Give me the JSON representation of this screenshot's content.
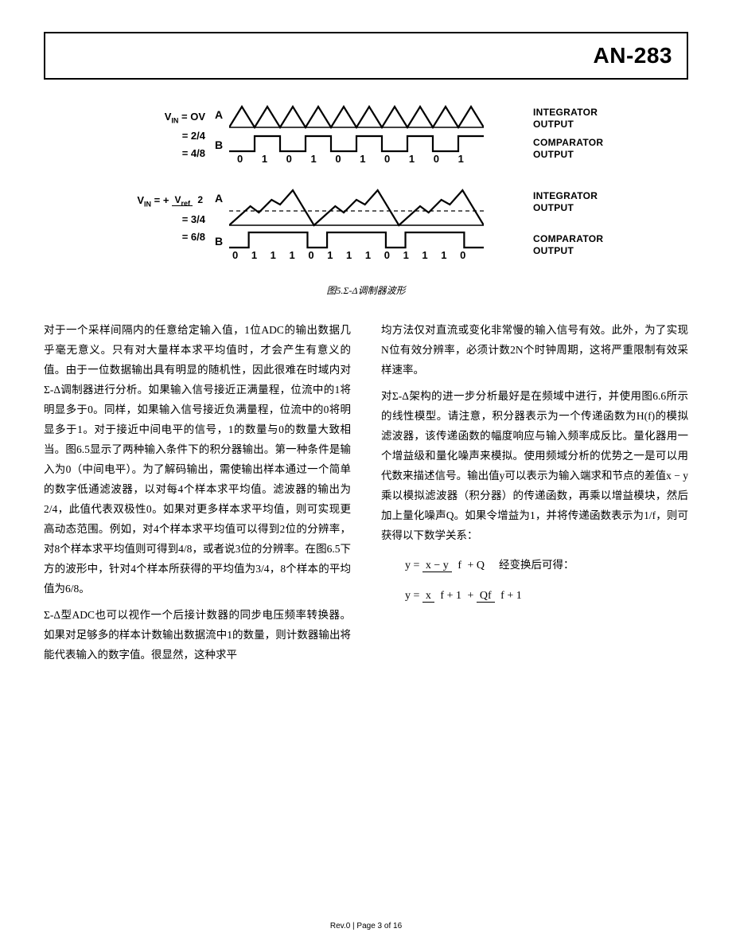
{
  "header": {
    "title": "AN-283"
  },
  "diagram": {
    "row1": {
      "vin_line1_prefix": "V",
      "vin_line1_sub": "IN",
      "vin_line1_rest": " = OV",
      "vin_line2": "= 2/4",
      "vin_line3": "= 4/8",
      "labelA": "A",
      "labelB": "B",
      "outA": "INTEGRATOR OUTPUT",
      "outB": "COMPARATOR OUTPUT",
      "bits": "0  1  0  1  0  1  0  1  0  1",
      "tri_count": 10,
      "sq_values": [
        0,
        1,
        0,
        1,
        0,
        1,
        0,
        1,
        0,
        1
      ]
    },
    "row2": {
      "vin_line1_prefix": "V",
      "vin_line1_sub": "IN",
      "vin_line1_rest1": " = + ",
      "vin_line1_frac_n": "V",
      "vin_line1_frac_nsub": "ref",
      "vin_line1_frac_d": "2",
      "vin_line2": "= 3/4",
      "vin_line3": "= 6/8",
      "labelA": "A",
      "labelB": "B",
      "outA": "INTEGRATOR OUTPUT",
      "outB": "COMPARATOR OUTPUT",
      "bits": "0  1  1  1  0  1  1  1  0  1  1  1  0",
      "sq_values": [
        0,
        1,
        1,
        1,
        0,
        1,
        1,
        1,
        0,
        1,
        1,
        1,
        0
      ]
    },
    "caption": "图5.Σ-Δ调制器波形",
    "stroke_color": "#000000",
    "stroke_width": 2.2
  },
  "body": {
    "col1": {
      "p1": "对于一个采样间隔内的任意给定输入值，1位ADC的输出数据几乎毫无意义。只有对大量样本求平均值时，才会产生有意义的值。由于一位数据输出具有明显的随机性，因此很难在时域内对Σ-Δ调制器进行分析。如果输入信号接近正满量程，位流中的1将明显多于0。同样，如果输入信号接近负满量程，位流中的0将明显多于1。对于接近中间电平的信号，1的数量与0的数量大致相当。图6.5显示了两种输入条件下的积分器输出。第一种条件是输入为0（中间电平）。为了解码输出，需使输出样本通过一个简单的数字低通滤波器，以对每4个样本求平均值。滤波器的输出为2/4，此值代表双极性0。如果对更多样本求平均值，则可实现更高动态范围。例如，对4个样本求平均值可以得到2位的分辨率，对8个样本求平均值则可得到4/8，或者说3位的分辨率。在图6.5下方的波形中，针对4个样本所获得的平均值为3/4，8个样本的平均值为6/8。",
      "p2": "Σ-Δ型ADC也可以视作一个后接计数器的同步电压频率转换器。如果对足够多的样本计数输出数据流中1的数量，则计数器输出将能代表输入的数字值。很显然，这种求平"
    },
    "col2": {
      "p1": "均方法仅对直流或变化非常慢的输入信号有效。此外，为了实现N位有效分辨率，必须计数2N个时钟周期，这将严重限制有效采样速率。",
      "p2": "对Σ-Δ架构的进一步分析最好是在频域中进行，并使用图6.6所示的线性模型。请注意，积分器表示为一个传递函数为H(f)的模拟滤波器，该传递函数的幅度响应与输入频率成反比。量化器用一个增益级和量化噪声来模拟。使用频域分析的优势之一是可以用代数来描述信号。输出值y可以表示为输入端求和节点的差值x − y乘以模拟滤波器（积分器）的传递函数，再乘以增益模块，然后加上量化噪声Q。如果令增益为1，并将传递函数表示为1/f，则可获得以下数学关系：",
      "eq1_lhs": "y = ",
      "eq1_frac_n": "x − y",
      "eq1_frac_d": "f",
      "eq1_rhs": " + Q",
      "eq1_comment": "经变换后可得：",
      "eq2_lhs": "y = ",
      "eq2_t1_n": "x",
      "eq2_t1_d": "f + 1",
      "eq2_plus": " + ",
      "eq2_t2_n": "Qf",
      "eq2_t2_d": "f + 1"
    }
  },
  "footer": {
    "text": "Rev.0 | Page 3 of 16"
  }
}
